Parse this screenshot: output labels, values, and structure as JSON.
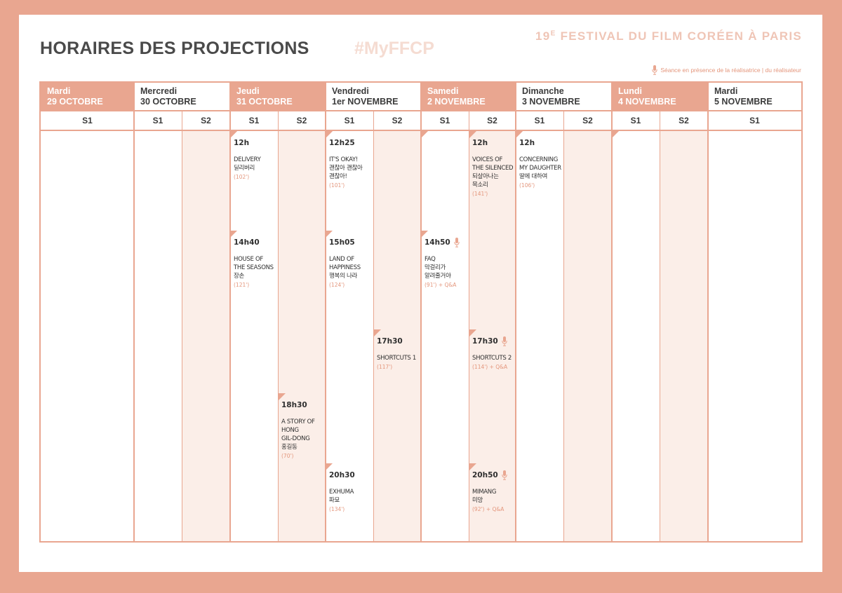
{
  "header": {
    "title": "HORAIRES DES PROJECTIONS",
    "hashtag": "#MyFFCP",
    "festival_number": "19",
    "festival_sup": "E",
    "festival_rest": " FESTIVAL DU FILM CORÉEN À PARIS",
    "legend": "Séance en présence de la réalisatrice | du réalisateur"
  },
  "colors": {
    "accent": "#e9a690",
    "band": "#fbeee8",
    "text": "#3b3b3b",
    "muted": "#e4967c"
  },
  "days": [
    {
      "name": "Mardi",
      "date": "29 OCTOBRE",
      "screens": [
        "S1"
      ]
    },
    {
      "name": "Mercredi",
      "date": "30 OCTOBRE",
      "screens": [
        "S1",
        "S2"
      ]
    },
    {
      "name": "Jeudi",
      "date": "31 OCTOBRE",
      "screens": [
        "S1",
        "S2"
      ]
    },
    {
      "name": "Vendredi",
      "date": "1er NOVEMBRE",
      "screens": [
        "S1",
        "S2"
      ]
    },
    {
      "name": "Samedi",
      "date": "2 NOVEMBRE",
      "screens": [
        "S1",
        "S2"
      ]
    },
    {
      "name": "Dimanche",
      "date": "3 NOVEMBRE",
      "screens": [
        "S1",
        "S2"
      ]
    },
    {
      "name": "Lundi",
      "date": "4 NOVEMBRE",
      "screens": [
        "S1",
        "S2"
      ]
    },
    {
      "name": "Mardi",
      "date": "5 NOVEMBRE",
      "screens": [
        "S1"
      ]
    }
  ],
  "screenings": [
    {
      "day": "Jeudi 31 octobre",
      "screen": "S1",
      "time": "12h",
      "title": [
        "DELIVERY",
        "딜리버리"
      ],
      "duration": "(102')",
      "qa": false
    },
    {
      "day": "Jeudi 31 octobre",
      "screen": "S1",
      "time": "14h40",
      "title": [
        "HOUSE OF",
        "THE SEASONS",
        "장손"
      ],
      "duration": "(121')",
      "qa": false
    },
    {
      "day": "Jeudi 31 octobre",
      "screen": "S2",
      "time": "18h30",
      "title": [
        "A STORY OF",
        "HONG",
        "GIL-DONG",
        "홍길동"
      ],
      "duration": "(70')",
      "qa": false
    },
    {
      "day": "Vendredi 1er novembre",
      "screen": "S1",
      "time": "12h25",
      "title": [
        "IT'S OKAY!",
        "괜찮아 괜찮아",
        "괜찮아!"
      ],
      "duration": "(101')",
      "qa": false
    },
    {
      "day": "Vendredi 1er novembre",
      "screen": "S1",
      "time": "15h05",
      "title": [
        "LAND OF",
        "HAPPINESS",
        "행복의 나라"
      ],
      "duration": "(124')",
      "qa": false
    },
    {
      "day": "Vendredi 1er novembre",
      "screen": "S1",
      "time": "20h30",
      "title": [
        "EXHUMA",
        "파묘"
      ],
      "duration": "(134')",
      "qa": false
    },
    {
      "day": "Vendredi 1er novembre",
      "screen": "S2",
      "time": "17h30",
      "title": [
        "SHORTCUTS 1"
      ],
      "duration": "(117')",
      "qa": false
    },
    {
      "day": "Samedi 2 novembre",
      "screen": "S1",
      "time": "14h50",
      "title": [
        "FAQ",
        "막걸리가",
        "알려줄거야"
      ],
      "duration": "(91') + Q&A",
      "qa": true
    },
    {
      "day": "Samedi 2 novembre",
      "screen": "S2",
      "time": "12h",
      "title": [
        "VOICES OF",
        "THE SILENCED",
        "되살아나는",
        "목소리"
      ],
      "duration": "(141')",
      "qa": false
    },
    {
      "day": "Samedi 2 novembre",
      "screen": "S2",
      "time": "17h30",
      "title": [
        "SHORTCUTS 2"
      ],
      "duration": "(114') + Q&A",
      "qa": true
    },
    {
      "day": "Samedi 2 novembre",
      "screen": "S2",
      "time": "20h50",
      "title": [
        "MIMANG",
        "미망"
      ],
      "duration": "(92') + Q&A",
      "qa": true
    },
    {
      "day": "Dimanche 3 novembre",
      "screen": "S1",
      "time": "12h",
      "title": [
        "CONCERNING",
        "MY DAUGHTER",
        "딸에 대하여"
      ],
      "duration": "(106')",
      "qa": false
    }
  ]
}
